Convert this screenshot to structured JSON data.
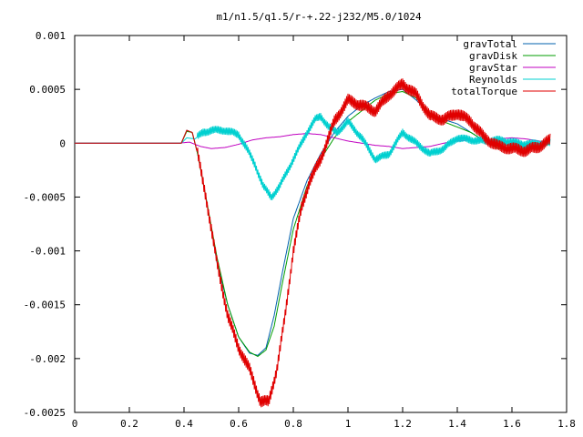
{
  "chart_data": {
    "type": "line",
    "title": "m1/n1.5/q1.5/r-+.22-j232/M5.0/1024",
    "xlabel": "",
    "ylabel": "",
    "xlim": [
      0,
      1.8
    ],
    "ylim": [
      -0.0025,
      0.001
    ],
    "x_ticks": [
      0,
      0.2,
      0.4,
      0.6,
      0.8,
      1,
      1.2,
      1.4,
      1.6,
      1.8
    ],
    "x_tick_labels": [
      "0",
      "0.2",
      "0.4",
      "0.6",
      "0.8",
      "1",
      "1.2",
      "1.4",
      "1.6",
      "1.8"
    ],
    "y_ticks": [
      -0.0025,
      -0.002,
      -0.0015,
      -0.001,
      -0.0005,
      0,
      0.0005,
      0.001
    ],
    "y_tick_labels": [
      "-0.0025",
      "-0.002",
      "-0.0015",
      "-0.001",
      "-0.0005",
      "0",
      "0.0005",
      "0.001"
    ],
    "grid": false,
    "legend_position": "top-right",
    "series": [
      {
        "name": "gravTotal",
        "color": "#0060ad",
        "noise": 0,
        "points": [
          [
            0,
            0
          ],
          [
            0.39,
            0
          ],
          [
            0.41,
            0.00012
          ],
          [
            0.43,
            0.0001
          ],
          [
            0.45,
            -0.0001
          ],
          [
            0.48,
            -0.0005
          ],
          [
            0.52,
            -0.0011
          ],
          [
            0.56,
            -0.0015
          ],
          [
            0.6,
            -0.0018
          ],
          [
            0.64,
            -0.00195
          ],
          [
            0.67,
            -0.00197
          ],
          [
            0.7,
            -0.0019
          ],
          [
            0.73,
            -0.0016
          ],
          [
            0.76,
            -0.0012
          ],
          [
            0.8,
            -0.0007
          ],
          [
            0.85,
            -0.00035
          ],
          [
            0.9,
            -0.0001
          ],
          [
            0.95,
            0.0001
          ],
          [
            1.0,
            0.00025
          ],
          [
            1.05,
            0.00035
          ],
          [
            1.1,
            0.00042
          ],
          [
            1.15,
            0.00048
          ],
          [
            1.2,
            0.0005
          ],
          [
            1.25,
            0.0004
          ],
          [
            1.3,
            0.00028
          ],
          [
            1.35,
            0.00022
          ],
          [
            1.4,
            0.00018
          ],
          [
            1.45,
            0.0001
          ],
          [
            1.5,
            2e-05
          ],
          [
            1.55,
            -3e-05
          ],
          [
            1.6,
            -5e-05
          ],
          [
            1.65,
            -3e-05
          ],
          [
            1.7,
            0
          ],
          [
            1.74,
            1e-05
          ]
        ]
      },
      {
        "name": "gravDisk",
        "color": "#009e00",
        "noise": 0,
        "points": [
          [
            0,
            0
          ],
          [
            0.39,
            0
          ],
          [
            0.41,
            0.00011
          ],
          [
            0.43,
            0.0001
          ],
          [
            0.45,
            -0.0001
          ],
          [
            0.48,
            -0.0005
          ],
          [
            0.52,
            -0.00105
          ],
          [
            0.56,
            -0.0015
          ],
          [
            0.6,
            -0.0018
          ],
          [
            0.64,
            -0.00194
          ],
          [
            0.67,
            -0.00198
          ],
          [
            0.7,
            -0.00192
          ],
          [
            0.73,
            -0.0017
          ],
          [
            0.76,
            -0.0013
          ],
          [
            0.8,
            -0.0008
          ],
          [
            0.85,
            -0.0004
          ],
          [
            0.9,
            -0.00015
          ],
          [
            0.95,
            5e-05
          ],
          [
            1.0,
            0.0002
          ],
          [
            1.05,
            0.0003
          ],
          [
            1.1,
            0.0004
          ],
          [
            1.15,
            0.00046
          ],
          [
            1.2,
            0.00048
          ],
          [
            1.25,
            0.00042
          ],
          [
            1.3,
            0.00028
          ],
          [
            1.35,
            0.0002
          ],
          [
            1.4,
            0.00015
          ],
          [
            1.45,
            0.0001
          ],
          [
            1.5,
            2e-05
          ],
          [
            1.55,
            -5e-05
          ],
          [
            1.6,
            -6e-05
          ],
          [
            1.65,
            -5e-05
          ],
          [
            1.7,
            -2e-05
          ],
          [
            1.74,
            -1e-05
          ]
        ]
      },
      {
        "name": "gravStar",
        "color": "#c000c0",
        "noise": 0,
        "points": [
          [
            0,
            0
          ],
          [
            0.38,
            0
          ],
          [
            0.42,
            1e-05
          ],
          [
            0.46,
            -3e-05
          ],
          [
            0.5,
            -5e-05
          ],
          [
            0.55,
            -4e-05
          ],
          [
            0.6,
            -1e-05
          ],
          [
            0.65,
            3e-05
          ],
          [
            0.7,
            5e-05
          ],
          [
            0.75,
            6e-05
          ],
          [
            0.8,
            8e-05
          ],
          [
            0.85,
            9e-05
          ],
          [
            0.9,
            8e-05
          ],
          [
            0.95,
            5e-05
          ],
          [
            1.0,
            2e-05
          ],
          [
            1.05,
            0
          ],
          [
            1.1,
            -2e-05
          ],
          [
            1.15,
            -3e-05
          ],
          [
            1.2,
            -5e-05
          ],
          [
            1.25,
            -4e-05
          ],
          [
            1.3,
            -3e-05
          ],
          [
            1.35,
            0
          ],
          [
            1.4,
            2e-05
          ],
          [
            1.45,
            3e-05
          ],
          [
            1.5,
            2e-05
          ],
          [
            1.55,
            4e-05
          ],
          [
            1.6,
            5e-05
          ],
          [
            1.65,
            4e-05
          ],
          [
            1.7,
            2e-05
          ],
          [
            1.74,
            0
          ]
        ]
      },
      {
        "name": "Reynolds",
        "color": "#00d0d0",
        "noise": 4e-05,
        "points": [
          [
            0,
            0
          ],
          [
            0.39,
            0
          ],
          [
            0.41,
            5e-05
          ],
          [
            0.44,
            4e-05
          ],
          [
            0.47,
            0.0001
          ],
          [
            0.5,
            0.00012
          ],
          [
            0.55,
            0.00012
          ],
          [
            0.6,
            8e-05
          ],
          [
            0.63,
            -5e-05
          ],
          [
            0.66,
            -0.0002
          ],
          [
            0.69,
            -0.0004
          ],
          [
            0.72,
            -0.0005
          ],
          [
            0.75,
            -0.0004
          ],
          [
            0.78,
            -0.00025
          ],
          [
            0.82,
            -5e-05
          ],
          [
            0.85,
            0.0001
          ],
          [
            0.88,
            0.00022
          ],
          [
            0.9,
            0.00025
          ],
          [
            0.93,
            0.00015
          ],
          [
            0.96,
            0.0001
          ],
          [
            1.0,
            0.0002
          ],
          [
            1.05,
            5e-05
          ],
          [
            1.1,
            -0.00015
          ],
          [
            1.15,
            -0.0001
          ],
          [
            1.2,
            0.0001
          ],
          [
            1.25,
            0
          ],
          [
            1.3,
            -0.0001
          ],
          [
            1.35,
            -5e-05
          ],
          [
            1.4,
            5e-05
          ],
          [
            1.45,
            3e-05
          ],
          [
            1.5,
            2e-05
          ],
          [
            1.55,
            3e-05
          ],
          [
            1.6,
            1e-05
          ],
          [
            1.65,
            -1e-05
          ],
          [
            1.7,
            0
          ],
          [
            1.74,
            0
          ]
        ]
      },
      {
        "name": "totalTorque",
        "color": "#e00000",
        "noise": 6e-05,
        "points": [
          [
            0,
            0
          ],
          [
            0.39,
            0
          ],
          [
            0.41,
            0.00012
          ],
          [
            0.43,
            0.0001
          ],
          [
            0.45,
            -0.0001
          ],
          [
            0.48,
            -0.0005
          ],
          [
            0.52,
            -0.0011
          ],
          [
            0.56,
            -0.0016
          ],
          [
            0.6,
            -0.0019
          ],
          [
            0.64,
            -0.0021
          ],
          [
            0.68,
            -0.0024
          ],
          [
            0.71,
            -0.0024
          ],
          [
            0.74,
            -0.0021
          ],
          [
            0.77,
            -0.0016
          ],
          [
            0.8,
            -0.001
          ],
          [
            0.83,
            -0.0006
          ],
          [
            0.86,
            -0.00035
          ],
          [
            0.9,
            -0.00015
          ],
          [
            0.95,
            0.0002
          ],
          [
            1.0,
            0.0004
          ],
          [
            1.05,
            0.00035
          ],
          [
            1.1,
            0.0003
          ],
          [
            1.15,
            0.00045
          ],
          [
            1.2,
            0.00055
          ],
          [
            1.25,
            0.00045
          ],
          [
            1.3,
            0.00025
          ],
          [
            1.35,
            0.00022
          ],
          [
            1.4,
            0.00028
          ],
          [
            1.45,
            0.0002
          ],
          [
            1.5,
            5e-05
          ],
          [
            1.55,
            -3e-05
          ],
          [
            1.6,
            -5e-05
          ],
          [
            1.65,
            -7e-05
          ],
          [
            1.7,
            -3e-05
          ],
          [
            1.74,
            3e-05
          ]
        ]
      }
    ]
  }
}
